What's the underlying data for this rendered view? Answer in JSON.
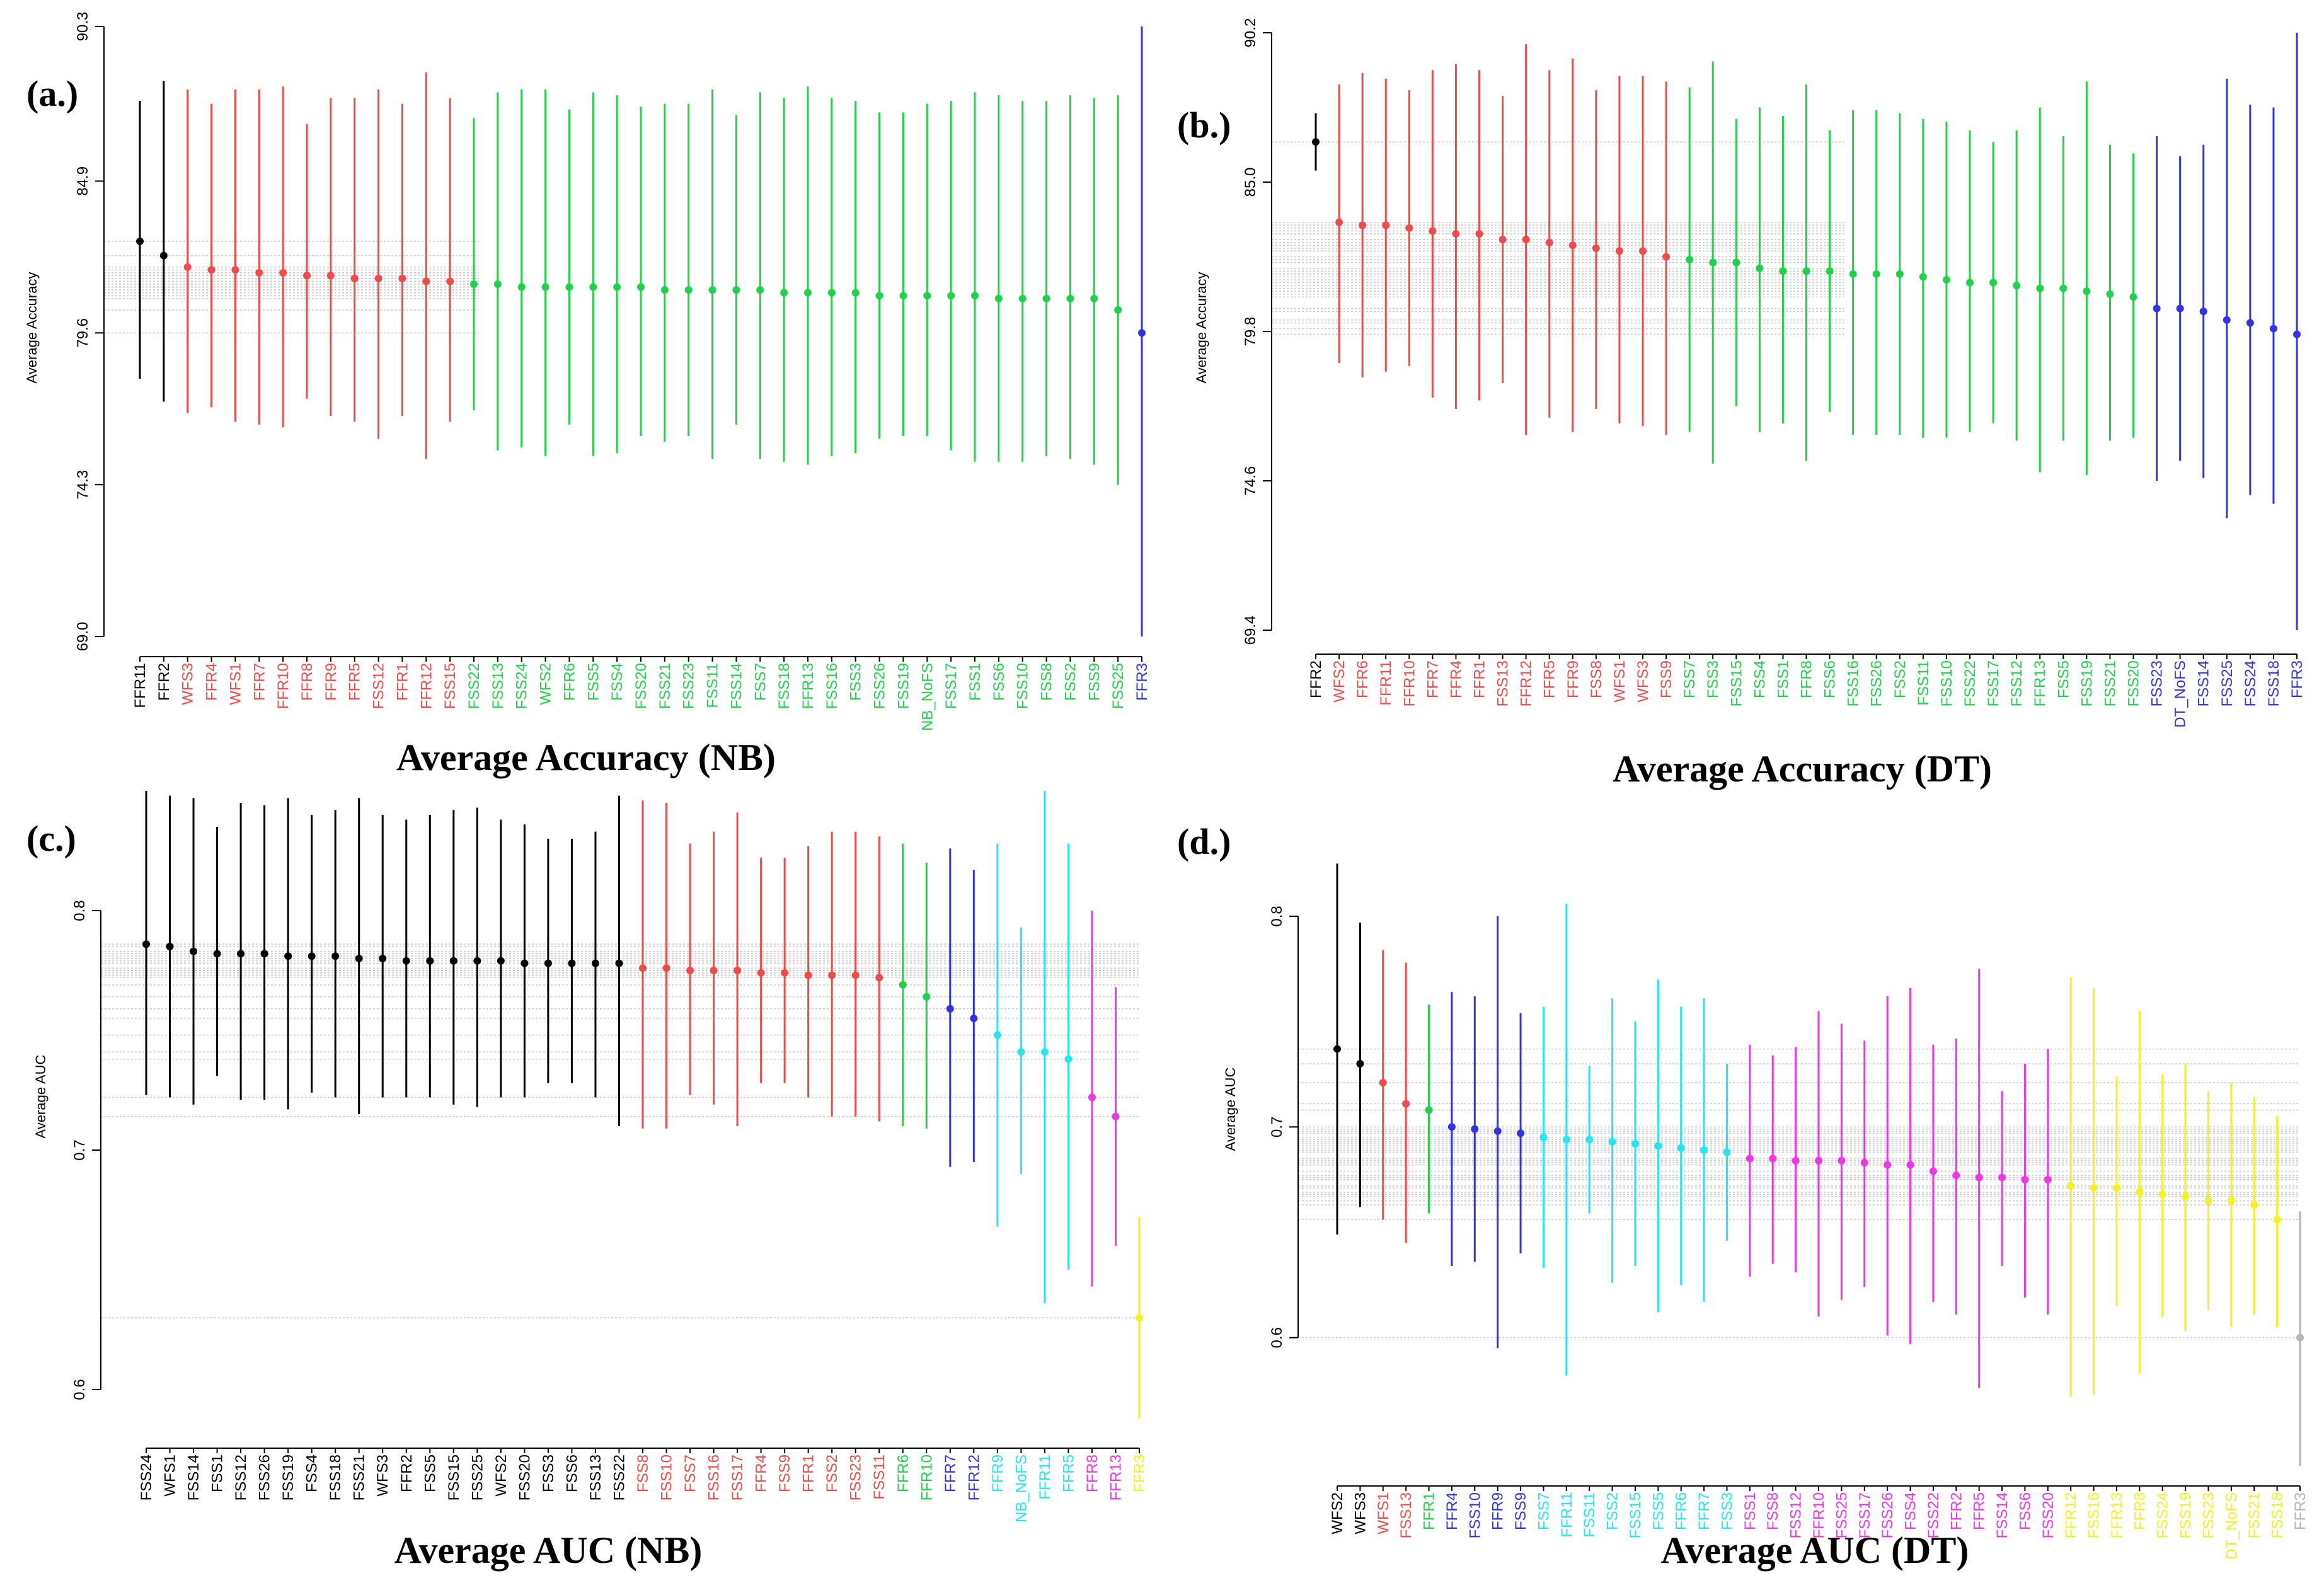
{
  "colors": {
    "black": "#000000",
    "red": "#f04a4a",
    "green": "#1ed34a",
    "blue": "#3333e6",
    "cyan": "#22e6f0",
    "magenta": "#f035e8",
    "yellow": "#f2f21e",
    "gray": "#b4b4b4",
    "grid": "#c8c8c8"
  },
  "chart_data": [
    {
      "panel_label": "(a.)",
      "caption": "Average Accuracy (NB)",
      "ylabel": "Average Accuracy",
      "type": "scatter",
      "error_bars": true,
      "ylim": [
        69.0,
        90.3
      ],
      "yticks": [
        "69.0",
        "74.3",
        "79.6",
        "84.9",
        "90.3"
      ],
      "ytick_values": [
        69.0,
        74.3,
        79.6,
        84.9,
        90.3
      ],
      "categories": [
        "FFR11",
        "FFR2",
        "WFS3",
        "FFR4",
        "WFS1",
        "FFR7",
        "FFR10",
        "FFR8",
        "FFR9",
        "FFR5",
        "FSS12",
        "FFR1",
        "FFR12",
        "FSS15",
        "FSS22",
        "FSS13",
        "FSS24",
        "WFS2",
        "FFR6",
        "FSS5",
        "FSS4",
        "FSS20",
        "FSS21",
        "FSS23",
        "FSS11",
        "FSS14",
        "FSS7",
        "FSS18",
        "FFR13",
        "FSS16",
        "FSS3",
        "FSS26",
        "FSS19",
        "NB_NoFS",
        "FSS17",
        "FSS1",
        "FSS6",
        "FSS10",
        "FSS8",
        "FSS2",
        "FSS9",
        "FSS25",
        "FFR3"
      ],
      "values": [
        82.8,
        82.3,
        81.9,
        81.8,
        81.8,
        81.7,
        81.7,
        81.6,
        81.6,
        81.5,
        81.5,
        81.5,
        81.4,
        81.4,
        81.3,
        81.3,
        81.2,
        81.2,
        81.2,
        81.2,
        81.2,
        81.2,
        81.1,
        81.1,
        81.1,
        81.1,
        81.1,
        81.0,
        81.0,
        81.0,
        81.0,
        80.9,
        80.9,
        80.9,
        80.9,
        80.9,
        80.8,
        80.8,
        80.8,
        80.8,
        80.8,
        80.4,
        79.6
      ],
      "lower": [
        78.0,
        77.2,
        76.8,
        77.0,
        76.5,
        76.4,
        76.3,
        77.3,
        76.7,
        76.5,
        75.9,
        76.7,
        75.2,
        76.5,
        76.9,
        75.5,
        75.6,
        75.3,
        76.4,
        75.3,
        75.4,
        76.0,
        75.8,
        76.0,
        75.2,
        76.4,
        75.2,
        75.1,
        75.0,
        75.3,
        75.4,
        75.9,
        76.0,
        76.0,
        75.5,
        75.1,
        75.1,
        75.1,
        75.3,
        75.2,
        75.0,
        74.3,
        69.0
      ],
      "upper": [
        87.7,
        88.4,
        88.1,
        87.6,
        88.1,
        88.1,
        88.2,
        86.9,
        87.8,
        87.8,
        88.1,
        87.6,
        88.7,
        87.8,
        87.1,
        88.0,
        88.1,
        88.1,
        87.4,
        88.0,
        87.9,
        87.5,
        87.6,
        87.6,
        88.1,
        87.2,
        88.0,
        87.8,
        88.2,
        87.8,
        87.7,
        87.3,
        87.3,
        87.6,
        87.7,
        88.0,
        87.9,
        87.7,
        87.7,
        87.9,
        87.8,
        87.9,
        90.3
      ],
      "group_colors": [
        "black",
        "black",
        "red",
        "red",
        "red",
        "red",
        "red",
        "red",
        "red",
        "red",
        "red",
        "red",
        "red",
        "red",
        "green",
        "green",
        "green",
        "green",
        "green",
        "green",
        "green",
        "green",
        "green",
        "green",
        "green",
        "green",
        "green",
        "green",
        "green",
        "green",
        "green",
        "green",
        "green",
        "green",
        "green",
        "green",
        "green",
        "green",
        "green",
        "green",
        "green",
        "green",
        "blue"
      ]
    },
    {
      "panel_label": "(b.)",
      "caption": "Average Accuracy (DT)",
      "ylabel": "Average Accuracy",
      "type": "scatter",
      "error_bars": true,
      "ylim": [
        69.4,
        90.2
      ],
      "yticks": [
        "69.4",
        "74.6",
        "79.8",
        "85.0",
        "90.2"
      ],
      "ytick_values": [
        69.4,
        74.6,
        79.8,
        85.0,
        90.2
      ],
      "categories": [
        "FFR2",
        "WFS2",
        "FFR6",
        "FFR11",
        "FFR10",
        "FFR7",
        "FFR4",
        "FFR1",
        "FSS13",
        "FFR12",
        "FFR5",
        "FFR9",
        "FSS8",
        "WFS1",
        "WFS3",
        "FSS9",
        "FSS7",
        "FSS3",
        "FSS15",
        "FSS4",
        "FSS1",
        "FFR8",
        "FSS6",
        "FSS16",
        "FSS26",
        "FSS2",
        "FSS11",
        "FSS10",
        "FSS22",
        "FSS17",
        "FSS12",
        "FFR13",
        "FSS5",
        "FSS19",
        "FSS21",
        "FSS20",
        "FSS23",
        "DT_NoFS",
        "FSS14",
        "FSS25",
        "FSS24",
        "FSS18",
        "FFR3"
      ],
      "values": [
        86.4,
        83.6,
        83.5,
        83.5,
        83.4,
        83.3,
        83.2,
        83.2,
        83.0,
        83.0,
        82.9,
        82.8,
        82.7,
        82.6,
        82.6,
        82.4,
        82.3,
        82.2,
        82.2,
        82.0,
        81.9,
        81.9,
        81.9,
        81.8,
        81.8,
        81.8,
        81.7,
        81.6,
        81.5,
        81.5,
        81.4,
        81.3,
        81.3,
        81.2,
        81.1,
        81.0,
        80.6,
        80.6,
        80.5,
        80.2,
        80.1,
        79.9,
        79.7
      ],
      "lower": [
        85.4,
        78.7,
        78.2,
        78.4,
        78.6,
        77.5,
        77.1,
        77.4,
        78.0,
        76.2,
        76.8,
        76.3,
        77.1,
        76.6,
        76.5,
        76.2,
        76.3,
        75.2,
        77.2,
        76.3,
        76.6,
        75.3,
        77.0,
        76.2,
        76.2,
        76.2,
        76.1,
        76.1,
        76.3,
        76.6,
        76.0,
        74.9,
        76.0,
        74.8,
        76.0,
        76.1,
        74.6,
        75.3,
        74.7,
        73.3,
        74.1,
        73.8,
        69.4
      ],
      "upper": [
        87.4,
        88.4,
        88.8,
        88.6,
        88.2,
        88.9,
        89.1,
        88.9,
        88.0,
        89.8,
        88.9,
        89.3,
        88.2,
        88.7,
        88.7,
        88.5,
        88.3,
        89.2,
        87.2,
        87.6,
        87.3,
        88.4,
        86.8,
        87.5,
        87.5,
        87.4,
        87.2,
        87.1,
        86.8,
        86.4,
        86.8,
        87.6,
        86.6,
        88.5,
        86.3,
        86.0,
        86.6,
        85.9,
        86.3,
        88.6,
        87.7,
        87.6,
        90.2
      ],
      "group_colors": [
        "black",
        "red",
        "red",
        "red",
        "red",
        "red",
        "red",
        "red",
        "red",
        "red",
        "red",
        "red",
        "red",
        "red",
        "red",
        "red",
        "green",
        "green",
        "green",
        "green",
        "green",
        "green",
        "green",
        "green",
        "green",
        "green",
        "green",
        "green",
        "green",
        "green",
        "green",
        "green",
        "green",
        "green",
        "green",
        "green",
        "blue",
        "blue",
        "blue",
        "blue",
        "blue",
        "blue",
        "blue"
      ]
    },
    {
      "panel_label": "(c.)",
      "caption": "Average AUC (NB)",
      "ylabel": "Average AUC",
      "type": "scatter",
      "error_bars": true,
      "ylim": [
        0.575,
        0.85
      ],
      "yticks": [
        "0.6",
        "0.7",
        "0.8"
      ],
      "ytick_values": [
        0.6,
        0.7,
        0.8
      ],
      "categories": [
        "FSS24",
        "WFS1",
        "FSS14",
        "FSS1",
        "FSS12",
        "FSS26",
        "FSS19",
        "FSS4",
        "FSS18",
        "FSS21",
        "WFS3",
        "FFR2",
        "FSS5",
        "FSS15",
        "FSS25",
        "WFS2",
        "FSS20",
        "FSS3",
        "FSS6",
        "FSS13",
        "FSS22",
        "FSS8",
        "FSS10",
        "FSS7",
        "FSS16",
        "FSS17",
        "FFR4",
        "FSS9",
        "FFR1",
        "FSS2",
        "FSS23",
        "FSS11",
        "FFR6",
        "FFR10",
        "FFR7",
        "FFR12",
        "FFR9",
        "NB_NoFS",
        "FFR11",
        "FFR5",
        "FFR8",
        "FFR13",
        "FFR3"
      ],
      "values": [
        0.786,
        0.785,
        0.783,
        0.782,
        0.782,
        0.782,
        0.781,
        0.781,
        0.781,
        0.78,
        0.78,
        0.779,
        0.779,
        0.779,
        0.779,
        0.779,
        0.778,
        0.778,
        0.778,
        0.778,
        0.778,
        0.776,
        0.776,
        0.775,
        0.775,
        0.775,
        0.774,
        0.774,
        0.773,
        0.773,
        0.773,
        0.772,
        0.769,
        0.764,
        0.759,
        0.755,
        0.748,
        0.741,
        0.741,
        0.738,
        0.722,
        0.714,
        0.63
      ],
      "lower": [
        0.723,
        0.722,
        0.719,
        0.731,
        0.721,
        0.721,
        0.717,
        0.724,
        0.722,
        0.715,
        0.722,
        0.722,
        0.722,
        0.719,
        0.718,
        0.722,
        0.722,
        0.728,
        0.728,
        0.722,
        0.71,
        0.709,
        0.709,
        0.723,
        0.719,
        0.71,
        0.728,
        0.728,
        0.722,
        0.714,
        0.714,
        0.712,
        0.71,
        0.709,
        0.693,
        0.695,
        0.668,
        0.69,
        0.636,
        0.65,
        0.643,
        0.66,
        0.588
      ],
      "upper": [
        0.85,
        0.848,
        0.847,
        0.835,
        0.845,
        0.844,
        0.847,
        0.84,
        0.842,
        0.847,
        0.84,
        0.838,
        0.84,
        0.842,
        0.843,
        0.838,
        0.836,
        0.83,
        0.83,
        0.833,
        0.848,
        0.846,
        0.845,
        0.828,
        0.833,
        0.841,
        0.822,
        0.822,
        0.827,
        0.833,
        0.833,
        0.831,
        0.828,
        0.82,
        0.826,
        0.817,
        0.828,
        0.793,
        0.85,
        0.828,
        0.8,
        0.768,
        0.672
      ],
      "group_colors": [
        "black",
        "black",
        "black",
        "black",
        "black",
        "black",
        "black",
        "black",
        "black",
        "black",
        "black",
        "black",
        "black",
        "black",
        "black",
        "black",
        "black",
        "black",
        "black",
        "black",
        "black",
        "red",
        "red",
        "red",
        "red",
        "red",
        "red",
        "red",
        "red",
        "red",
        "red",
        "red",
        "green",
        "green",
        "blue",
        "blue",
        "cyan",
        "cyan",
        "cyan",
        "cyan",
        "magenta",
        "magenta",
        "yellow"
      ]
    },
    {
      "panel_label": "(d.)",
      "caption": "Average AUC (DT)",
      "ylabel": "Average AUC",
      "type": "scatter",
      "error_bars": true,
      "ylim": [
        0.535,
        0.855
      ],
      "yticks": [
        "0.6",
        "0.7",
        "0.8"
      ],
      "ytick_values": [
        0.6,
        0.7,
        0.8
      ],
      "categories": [
        "WFS2",
        "WFS3",
        "WFS1",
        "FSS13",
        "FFR1",
        "FFR4",
        "FSS10",
        "FFR9",
        "FSS9",
        "FSS7",
        "FFR11",
        "FSS11",
        "FSS2",
        "FSS15",
        "FSS5",
        "FFR6",
        "FFR7",
        "FSS3",
        "FSS1",
        "FSS8",
        "FSS12",
        "FFR10",
        "FSS25",
        "FSS17",
        "FSS26",
        "FSS4",
        "FSS22",
        "FFR2",
        "FFR5",
        "FSS14",
        "FSS6",
        "FSS20",
        "FFR12",
        "FSS16",
        "FFR13",
        "FFR8",
        "FSS24",
        "FSS19",
        "FSS23",
        "DT_NoFS",
        "FSS21",
        "FSS18",
        "FFR3"
      ],
      "values": [
        0.737,
        0.73,
        0.721,
        0.711,
        0.708,
        0.7,
        0.699,
        0.698,
        0.697,
        0.695,
        0.694,
        0.694,
        0.693,
        0.692,
        0.691,
        0.69,
        0.689,
        0.688,
        0.685,
        0.685,
        0.684,
        0.684,
        0.684,
        0.683,
        0.682,
        0.682,
        0.679,
        0.677,
        0.676,
        0.676,
        0.675,
        0.675,
        0.672,
        0.671,
        0.671,
        0.669,
        0.668,
        0.667,
        0.665,
        0.665,
        0.663,
        0.656,
        0.6
      ],
      "lower": [
        0.649,
        0.662,
        0.656,
        0.645,
        0.659,
        0.634,
        0.636,
        0.595,
        0.64,
        0.633,
        0.582,
        0.659,
        0.626,
        0.634,
        0.612,
        0.625,
        0.617,
        0.646,
        0.629,
        0.635,
        0.631,
        0.61,
        0.618,
        0.624,
        0.601,
        0.597,
        0.617,
        0.611,
        0.576,
        0.634,
        0.619,
        0.611,
        0.572,
        0.573,
        0.615,
        0.583,
        0.61,
        0.603,
        0.613,
        0.605,
        0.611,
        0.605,
        0.539
      ],
      "upper": [
        0.825,
        0.797,
        0.784,
        0.778,
        0.758,
        0.764,
        0.762,
        0.8,
        0.754,
        0.757,
        0.806,
        0.729,
        0.761,
        0.75,
        0.77,
        0.757,
        0.761,
        0.73,
        0.739,
        0.734,
        0.738,
        0.755,
        0.749,
        0.741,
        0.762,
        0.766,
        0.739,
        0.742,
        0.775,
        0.717,
        0.73,
        0.737,
        0.771,
        0.766,
        0.724,
        0.755,
        0.725,
        0.73,
        0.717,
        0.721,
        0.714,
        0.705,
        0.66
      ],
      "group_colors": [
        "black",
        "black",
        "red",
        "red",
        "green",
        "blue",
        "blue",
        "blue",
        "blue",
        "cyan",
        "cyan",
        "cyan",
        "cyan",
        "cyan",
        "cyan",
        "cyan",
        "cyan",
        "cyan",
        "magenta",
        "magenta",
        "magenta",
        "magenta",
        "magenta",
        "magenta",
        "magenta",
        "magenta",
        "magenta",
        "magenta",
        "magenta",
        "magenta",
        "magenta",
        "magenta",
        "yellow",
        "yellow",
        "yellow",
        "yellow",
        "yellow",
        "yellow",
        "yellow",
        "yellow",
        "yellow",
        "yellow",
        "gray"
      ]
    }
  ]
}
